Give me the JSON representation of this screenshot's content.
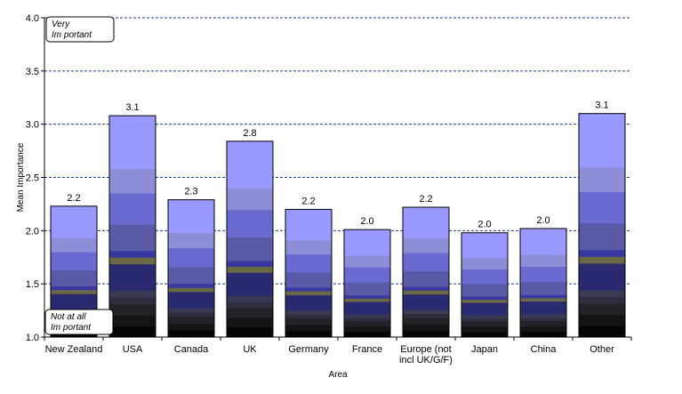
{
  "chart_data": {
    "type": "bar",
    "stacked_gradient": true,
    "title": "",
    "xlabel": "Area",
    "ylabel": "Mean Importance",
    "ylim": [
      1.0,
      4.0
    ],
    "yticks": [
      "1.0",
      "1.5",
      "2.0",
      "2.5",
      "3.0",
      "3.5",
      "4.0"
    ],
    "grid": "horizontal-dashed",
    "categories": [
      [
        "New Zealand"
      ],
      [
        "USA"
      ],
      [
        "Canada"
      ],
      [
        "UK"
      ],
      [
        "Germany"
      ],
      [
        "France"
      ],
      [
        "Europe (not",
        "incl UK/G/F)"
      ],
      [
        "Japan"
      ],
      [
        "China"
      ],
      [
        "Other"
      ]
    ],
    "values": [
      2.23,
      3.08,
      2.29,
      2.84,
      2.2,
      2.01,
      2.22,
      1.98,
      2.02,
      3.1
    ],
    "data_labels": [
      "2.2",
      "3.1",
      "2.3",
      "2.8",
      "2.2",
      "2.0",
      "2.2",
      "2.0",
      "2.0",
      "3.1"
    ],
    "annotations": {
      "top": [
        "Very",
        "Im portant"
      ],
      "bottom": [
        "Not at all",
        "Im portant"
      ]
    },
    "colors": {
      "top_band": "#9999ff",
      "grid": "#1f3a93"
    }
  }
}
